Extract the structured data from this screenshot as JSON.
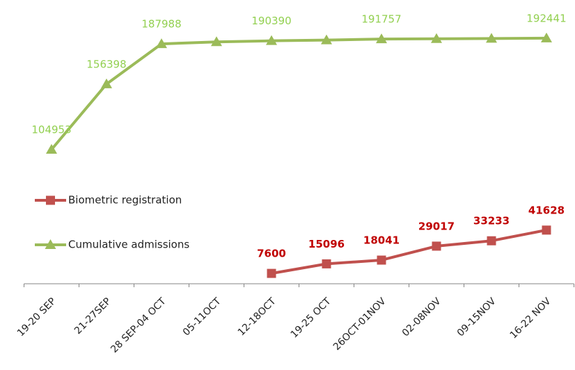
{
  "chart_data": {
    "type": "line",
    "categories": [
      "19-20 SEP",
      "21-27SEP",
      "28 SEP-04 OCT",
      "05-11OCT",
      "12-18OCT",
      "19-25 OCT",
      "26OCT-01NOV",
      "02-08NOV",
      "09-15NOV",
      "16-22 NOV"
    ],
    "series": [
      {
        "name": "Biometric registration",
        "color": "#c0504d",
        "label_color": "#c00000",
        "marker": "square",
        "values": [
          null,
          null,
          null,
          null,
          7600,
          15096,
          18041,
          29017,
          33233,
          41628
        ],
        "value_labels": [
          null,
          null,
          null,
          null,
          "7600",
          "15096",
          "18041",
          "29017",
          "33233",
          "41628"
        ]
      },
      {
        "name": "Cumulative admissions",
        "color": "#9bbb59",
        "label_color": "#92d050",
        "marker": "triangle",
        "values": [
          104953,
          156398,
          187988,
          189500,
          190390,
          191000,
          191757,
          192000,
          192200,
          192441
        ],
        "value_labels": [
          "104953",
          "156398",
          "187988",
          null,
          "190390",
          null,
          "191757",
          null,
          null,
          "192441"
        ]
      }
    ],
    "ylim": [
      0,
      217000
    ],
    "legend": "left"
  }
}
